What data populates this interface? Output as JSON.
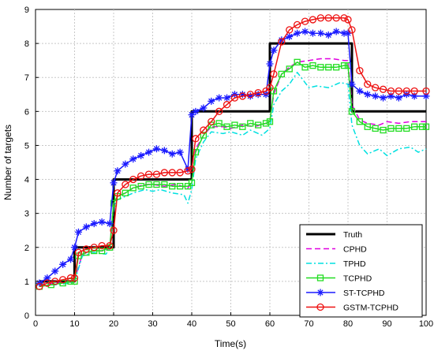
{
  "chart_data": {
    "type": "line",
    "title": "",
    "xlabel": "Time(s)",
    "ylabel": "Number of targets",
    "xlim": [
      0,
      100
    ],
    "ylim": [
      0,
      9
    ],
    "xticks": [
      0,
      10,
      20,
      30,
      40,
      50,
      60,
      70,
      80,
      90,
      100
    ],
    "yticks": [
      0,
      1,
      2,
      3,
      4,
      5,
      6,
      7,
      8,
      9
    ],
    "grid": true,
    "legend_position": "bottom-right",
    "series": [
      {
        "name": "Truth",
        "color": "#000000",
        "dash": "solid",
        "marker": "none",
        "x": [
          1,
          9,
          9,
          10,
          10,
          19,
          19,
          20,
          20,
          39,
          39,
          40,
          40,
          59,
          59,
          60,
          60,
          80,
          80,
          81,
          81,
          100
        ],
        "y": [
          1,
          1,
          1,
          1,
          2,
          2,
          2,
          2,
          4,
          4,
          4,
          4,
          6,
          6,
          6,
          6,
          8,
          8,
          8,
          8,
          6,
          6
        ]
      },
      {
        "name": "CPHD",
        "color": "#e000e0",
        "dash": "dashed",
        "marker": "none",
        "x": [
          1,
          5,
          9,
          10,
          12,
          15,
          18,
          19,
          20,
          21,
          23,
          25,
          28,
          30,
          33,
          36,
          39,
          40,
          41,
          43,
          45,
          48,
          50,
          53,
          56,
          59,
          60,
          61,
          63,
          65,
          67,
          70,
          73,
          76,
          79,
          80,
          81,
          83,
          85,
          88,
          90,
          93,
          96,
          100
        ],
        "y": [
          0.9,
          0.95,
          1.0,
          1.05,
          1.8,
          1.9,
          1.9,
          2.0,
          3.3,
          3.5,
          3.6,
          3.75,
          3.85,
          3.85,
          3.8,
          3.85,
          3.75,
          3.9,
          4.9,
          5.3,
          5.55,
          5.55,
          5.5,
          5.6,
          5.55,
          5.65,
          5.7,
          6.5,
          7.1,
          7.3,
          7.45,
          7.5,
          7.55,
          7.55,
          7.5,
          7.5,
          6.2,
          5.75,
          5.65,
          5.6,
          5.7,
          5.65,
          5.7,
          5.7
        ]
      },
      {
        "name": "TPHD",
        "color": "#00e0e0",
        "dash": "dashdot",
        "marker": "none",
        "x": [
          1,
          5,
          9,
          10,
          12,
          15,
          18,
          19,
          20,
          21,
          23,
          25,
          28,
          30,
          32,
          35,
          38,
          39,
          40,
          41,
          43,
          45,
          48,
          50,
          53,
          55,
          58,
          59,
          60,
          61,
          63,
          65,
          67,
          70,
          72,
          75,
          78,
          80,
          81,
          83,
          85,
          88,
          90,
          93,
          96,
          98,
          100
        ],
        "y": [
          0.9,
          0.9,
          0.95,
          1.0,
          1.75,
          1.85,
          1.8,
          1.95,
          3.2,
          3.4,
          3.5,
          3.6,
          3.7,
          3.65,
          3.7,
          3.6,
          3.55,
          3.3,
          3.7,
          4.6,
          5.1,
          5.4,
          5.35,
          5.4,
          5.3,
          5.45,
          5.3,
          5.4,
          5.5,
          6.2,
          6.6,
          6.8,
          7.15,
          6.7,
          6.75,
          6.7,
          6.85,
          6.8,
          5.6,
          5.0,
          4.75,
          4.9,
          4.7,
          4.9,
          4.95,
          4.8,
          4.9
        ]
      },
      {
        "name": "TCPHD",
        "color": "#22dd22",
        "dash": "solid",
        "marker": "square",
        "x": [
          1,
          4,
          7,
          9,
          10,
          11,
          13,
          15,
          17,
          19,
          20,
          21,
          23,
          25,
          27,
          29,
          31,
          33,
          35,
          37,
          39,
          40,
          41,
          43,
          45,
          47,
          49,
          51,
          53,
          55,
          57,
          59,
          60,
          61,
          63,
          65,
          67,
          69,
          71,
          73,
          75,
          77,
          79,
          80,
          81,
          83,
          85,
          87,
          89,
          91,
          93,
          95,
          97,
          99,
          100
        ],
        "y": [
          0.85,
          0.9,
          0.95,
          1.0,
          1.0,
          1.75,
          1.85,
          1.9,
          1.9,
          2.0,
          3.3,
          3.5,
          3.6,
          3.75,
          3.8,
          3.85,
          3.85,
          3.85,
          3.8,
          3.8,
          3.8,
          3.9,
          4.8,
          5.3,
          5.6,
          5.65,
          5.55,
          5.6,
          5.55,
          5.65,
          5.6,
          5.65,
          5.7,
          6.6,
          7.1,
          7.25,
          7.45,
          7.3,
          7.35,
          7.3,
          7.3,
          7.3,
          7.35,
          7.35,
          6.0,
          5.7,
          5.55,
          5.5,
          5.45,
          5.5,
          5.5,
          5.5,
          5.55,
          5.55,
          5.55
        ]
      },
      {
        "name": "ST-TCPHD",
        "color": "#1a1aff",
        "dash": "solid",
        "marker": "star",
        "x": [
          1,
          3,
          5,
          7,
          9,
          10,
          11,
          13,
          15,
          17,
          19,
          20,
          21,
          23,
          25,
          27,
          29,
          31,
          33,
          35,
          37,
          39,
          40,
          41,
          43,
          45,
          47,
          49,
          51,
          53,
          55,
          57,
          59,
          60,
          61,
          63,
          65,
          67,
          69,
          71,
          73,
          75,
          77,
          79,
          80,
          81,
          83,
          85,
          87,
          89,
          91,
          93,
          95,
          97,
          100
        ],
        "y": [
          0.95,
          1.1,
          1.3,
          1.5,
          1.65,
          2.0,
          2.45,
          2.6,
          2.7,
          2.75,
          2.7,
          3.9,
          4.25,
          4.45,
          4.6,
          4.7,
          4.8,
          4.9,
          4.85,
          4.75,
          4.8,
          4.3,
          5.9,
          6.0,
          6.1,
          6.3,
          6.4,
          6.4,
          6.5,
          6.5,
          6.45,
          6.5,
          6.5,
          7.4,
          7.8,
          8.1,
          8.2,
          8.3,
          8.35,
          8.3,
          8.3,
          8.25,
          8.35,
          8.3,
          8.3,
          6.8,
          6.6,
          6.5,
          6.45,
          6.4,
          6.45,
          6.4,
          6.5,
          6.45,
          6.45
        ]
      },
      {
        "name": "GSTM-TCPHD",
        "color": "#ee1111",
        "dash": "solid",
        "marker": "circle",
        "x": [
          1,
          3,
          5,
          7,
          9,
          10,
          11,
          13,
          15,
          17,
          19,
          20,
          21,
          23,
          25,
          27,
          29,
          31,
          33,
          35,
          37,
          39,
          40,
          41,
          43,
          45,
          47,
          49,
          51,
          53,
          55,
          57,
          59,
          60,
          61,
          63,
          65,
          67,
          69,
          71,
          73,
          75,
          77,
          79,
          80,
          81,
          83,
          85,
          87,
          89,
          91,
          93,
          95,
          97,
          100
        ],
        "y": [
          0.85,
          0.95,
          1.0,
          1.05,
          1.1,
          1.1,
          1.85,
          1.95,
          2.0,
          2.05,
          2.05,
          2.5,
          3.6,
          3.85,
          4.0,
          4.1,
          4.15,
          4.15,
          4.2,
          4.2,
          4.2,
          4.25,
          4.3,
          5.2,
          5.45,
          5.7,
          6.0,
          6.2,
          6.4,
          6.45,
          6.5,
          6.55,
          6.6,
          6.7,
          7.1,
          8.05,
          8.4,
          8.55,
          8.65,
          8.7,
          8.75,
          8.75,
          8.75,
          8.75,
          8.7,
          8.4,
          7.2,
          6.8,
          6.7,
          6.65,
          6.6,
          6.6,
          6.6,
          6.6,
          6.6
        ]
      }
    ]
  }
}
